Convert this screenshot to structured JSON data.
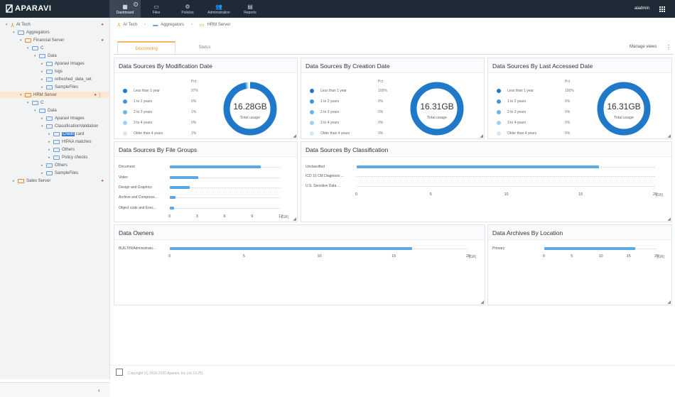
{
  "app": {
    "logo": "APARAVI",
    "user": "aiadmin"
  },
  "nav": [
    {
      "label": "Dashboard",
      "icon": "dashboard-icon",
      "glyph": "▦",
      "active": true
    },
    {
      "label": "Files",
      "icon": "folder-icon",
      "glyph": "▭"
    },
    {
      "label": "Policies",
      "icon": "gear-icon",
      "glyph": "⚙"
    },
    {
      "label": "Administration",
      "icon": "users-icon",
      "glyph": "👥"
    },
    {
      "label": "Reports",
      "icon": "reports-icon",
      "glyph": "▤"
    }
  ],
  "tree": [
    {
      "label": "AI Tech",
      "kind": "root",
      "level": 0,
      "caret": "▾",
      "dot": true
    },
    {
      "label": "Aggregators",
      "kind": "folder",
      "level": 1,
      "caret": "▾"
    },
    {
      "label": "Financial Server",
      "kind": "server",
      "level": 2,
      "caret": "▾",
      "dot": true
    },
    {
      "label": "C",
      "kind": "folder",
      "level": 3,
      "caret": "▾"
    },
    {
      "label": "Data",
      "kind": "folder",
      "level": 4,
      "caret": "▾"
    },
    {
      "label": "Aparavi Images",
      "kind": "folder",
      "level": 5,
      "caret": "▸"
    },
    {
      "label": "logs",
      "kind": "folder",
      "level": 5,
      "caret": "▸"
    },
    {
      "label": "refreshed_data_set",
      "kind": "folder",
      "level": 5,
      "caret": "▸"
    },
    {
      "label": "SampleFiles",
      "kind": "folder",
      "level": 5,
      "caret": "▸"
    },
    {
      "label": "HRM Server",
      "kind": "server",
      "level": 2,
      "caret": "▾",
      "dot": true,
      "selected": true
    },
    {
      "label": "C",
      "kind": "folder",
      "level": 3,
      "caret": "▾"
    },
    {
      "label": "Data",
      "kind": "folder",
      "level": 4,
      "caret": "▾"
    },
    {
      "label": "Aparavi Images",
      "kind": "folder",
      "level": 5,
      "caret": "▸"
    },
    {
      "label": "ClassificationValidation",
      "kind": "folder",
      "level": 5,
      "caret": "▾"
    },
    {
      "label": "Credit card",
      "kind": "folder",
      "level": 6,
      "caret": "▸",
      "highlight": "Credit"
    },
    {
      "label": "HIPAA matches",
      "kind": "folder",
      "level": 6,
      "caret": "▸"
    },
    {
      "label": "Others",
      "kind": "folder",
      "level": 6,
      "caret": "▸"
    },
    {
      "label": "Policy checks",
      "kind": "folder",
      "level": 6,
      "caret": "▸"
    },
    {
      "label": "Others",
      "kind": "folder",
      "level": 5,
      "caret": "▸"
    },
    {
      "label": "SampleFiles",
      "kind": "folder",
      "level": 5,
      "caret": "▸"
    },
    {
      "label": "Sales Server",
      "kind": "server",
      "level": 1,
      "caret": "▸",
      "dot": true
    }
  ],
  "breadcrumb": [
    "AI Tech",
    "Aggregators",
    "HRM Server"
  ],
  "tabs": [
    "Discovering",
    "Status"
  ],
  "manage_views": "Manage views",
  "legend_labels": [
    "Less than 1 year",
    "1 to 2 years",
    "2 to 3 years",
    "3 to 4 years",
    "Older than 4 years"
  ],
  "legend_colors": [
    "#1f78c8",
    "#3f96dc",
    "#6fb4e8",
    "#a6d0f2",
    "#d6e8f8"
  ],
  "pct_header": "Pct",
  "panels": {
    "mod": {
      "title": "Data Sources By Modification Date",
      "total": "16.28GB",
      "total_label": "Total usage",
      "pcts": [
        "97%",
        "0%",
        "1%",
        "0%",
        "1%"
      ],
      "fractions": [
        0.97,
        0,
        0.01,
        0,
        0.01
      ]
    },
    "cre": {
      "title": "Data Sources By Creation Date",
      "total": "16.31GB",
      "total_label": "Total usage",
      "pcts": [
        "100%",
        "0%",
        "0%",
        "0%",
        "0%"
      ],
      "fractions": [
        1.0,
        0,
        0,
        0,
        0
      ]
    },
    "acc": {
      "title": "Data Sources By Last Accessed Date",
      "total": "16.31GB",
      "total_label": "Total usage",
      "pcts": [
        "100%",
        "0%",
        "0%",
        "0%",
        "0%"
      ],
      "fractions": [
        1.0,
        0,
        0,
        0,
        0
      ]
    },
    "groups": {
      "title": "Data Sources By File Groups"
    },
    "classif": {
      "title": "Data Sources By Classification"
    },
    "owners": {
      "title": "Data Owners"
    },
    "archives": {
      "title": "Data Archives By Location"
    }
  },
  "chart_data": [
    {
      "type": "bar",
      "title": "Data Sources By File Groups",
      "categories": [
        "Document",
        "Video",
        "Design and Graphics",
        "Archive and Compress...",
        "Object code and Exec..."
      ],
      "values": [
        9.9,
        3.1,
        2.2,
        0.6,
        0.5
      ],
      "ticks": [
        "0",
        "3",
        "6",
        "9",
        "12"
      ],
      "xlim": [
        0,
        12
      ],
      "unit": "[GB]"
    },
    {
      "type": "bar",
      "title": "Data Sources By Classification",
      "categories": [
        "Unclassified",
        "ICD 10 CM Diagnosis ...",
        "U.S. Sensitive Data ..."
      ],
      "values": [
        16.3,
        0,
        0
      ],
      "ticks": [
        "0",
        "5",
        "10",
        "15",
        "20"
      ],
      "xlim": [
        0,
        20
      ],
      "unit": "[GB]"
    },
    {
      "type": "bar",
      "title": "Data Owners",
      "categories": [
        "BUILTIN\\Administrato..."
      ],
      "values": [
        16.3
      ],
      "ticks": [
        "0",
        "5",
        "10",
        "15",
        "20"
      ],
      "xlim": [
        0,
        20
      ],
      "unit": "[GB]"
    },
    {
      "type": "bar",
      "title": "Data Archives By Location",
      "categories": [
        "Primary"
      ],
      "values": [
        16.3
      ],
      "ticks": [
        "0",
        "5",
        "10",
        "15",
        "20"
      ],
      "xlim": [
        0,
        20
      ],
      "unit": "[GB]"
    }
  ],
  "footer": "Copyright (c) 2016-2020 Aparavi, Inc (v0.19.25)"
}
